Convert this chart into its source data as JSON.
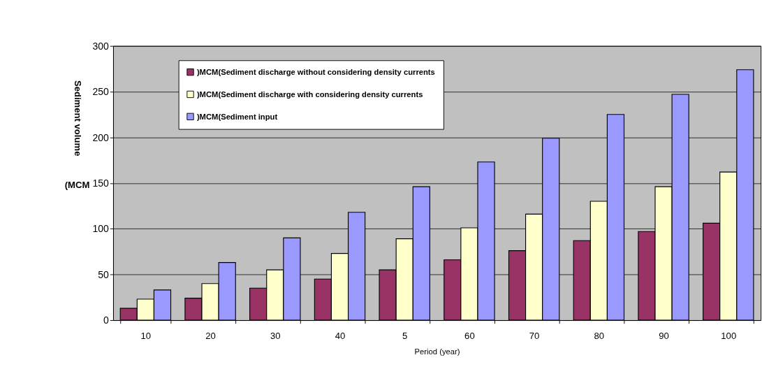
{
  "chart_data": {
    "type": "bar",
    "xlabel": "Period (year)",
    "ylabel": "Sediment volume",
    "annotations": [
      "(MCM"
    ],
    "categories": [
      "10",
      "20",
      "30",
      "40",
      "5",
      "60",
      "70",
      "80",
      "90",
      "100"
    ],
    "series": [
      {
        "name": ")MCM(Sediment discharge without considering density currents",
        "color": "#993366",
        "values": [
          13,
          24,
          35,
          45,
          55,
          66,
          76,
          87,
          97,
          106
        ]
      },
      {
        "name": ")MCM(Sediment discharge with considering density currents",
        "color": "#ffffcc",
        "values": [
          23,
          40,
          55,
          73,
          89,
          101,
          116,
          130,
          146,
          162
        ]
      },
      {
        "name": ")MCM(Sediment input",
        "color": "#9999ff",
        "values": [
          33,
          63,
          90,
          118,
          146,
          173,
          199,
          225,
          247,
          274
        ]
      }
    ],
    "ylim": [
      0,
      300
    ],
    "yticks": [
      0,
      50,
      100,
      150,
      200,
      250,
      300
    ],
    "grid": "y",
    "legend": "top left"
  }
}
